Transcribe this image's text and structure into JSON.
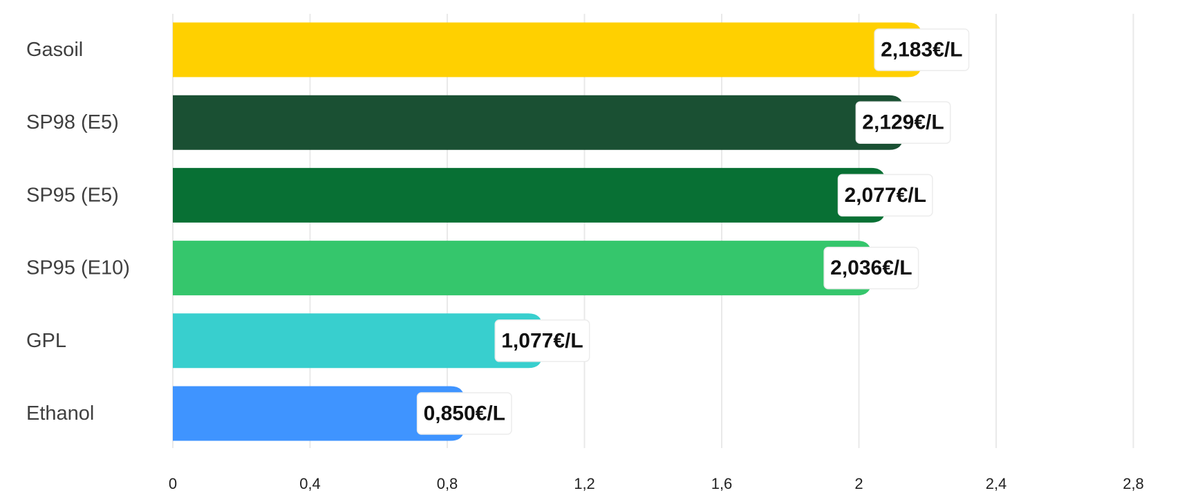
{
  "chart_data": {
    "type": "bar",
    "orientation": "horizontal",
    "categories": [
      "Gasoil",
      "SP98 (E5)",
      "SP95 (E5)",
      "SP95 (E10)",
      "GPL",
      "Ethanol"
    ],
    "values": [
      2.183,
      2.129,
      2.077,
      2.036,
      1.077,
      0.85
    ],
    "value_labels": [
      "2,183€/L",
      "2,129€/L",
      "2,077€/L",
      "2,036€/L",
      "1,077€/L",
      "0,850€/L"
    ],
    "colors": [
      "#FFD000",
      "#1A5033",
      "#087034",
      "#35C66C",
      "#38CFCE",
      "#3F94FF"
    ],
    "x_ticks": [
      {
        "value": 0,
        "label": "0"
      },
      {
        "value": 0.4,
        "label": "0,4"
      },
      {
        "value": 0.8,
        "label": "0,8"
      },
      {
        "value": 1.2,
        "label": "1,2"
      },
      {
        "value": 1.6,
        "label": "1,6"
      },
      {
        "value": 2.0,
        "label": "2"
      },
      {
        "value": 2.4,
        "label": "2,4"
      },
      {
        "value": 2.8,
        "label": "2,8"
      }
    ],
    "xlim": [
      0,
      2.8
    ],
    "grid": true,
    "legend": "none"
  }
}
